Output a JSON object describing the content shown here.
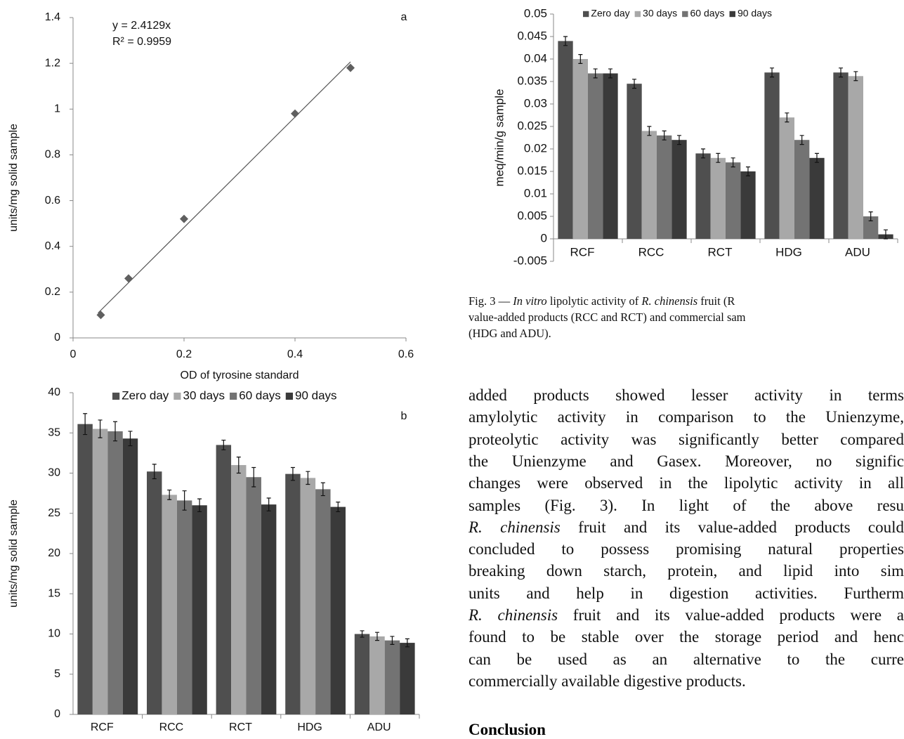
{
  "chart_data": [
    {
      "type": "scatter",
      "label": "a",
      "x": [
        0.05,
        0.1,
        0.2,
        0.4,
        0.5
      ],
      "y": [
        0.1,
        0.26,
        0.52,
        0.98,
        1.18
      ],
      "xlim": [
        0,
        0.6
      ],
      "xticks": [
        0,
        0.2,
        0.4,
        0.6
      ],
      "ylim": [
        0,
        1.4
      ],
      "yticks": [
        0,
        0.2,
        0.4,
        0.6,
        0.8,
        1,
        1.2,
        1.4
      ],
      "xlabel": "OD of tyrosine standard",
      "ylabel": "units/mg solid sample",
      "annotations": [
        "y = 2.4129x",
        "R² = 0.9959"
      ],
      "trendline_slope": 2.4129,
      "color": "#5f5f5f",
      "line_color": "#555555"
    },
    {
      "type": "bar",
      "label": "b",
      "legend": "top",
      "categories": [
        "RCF",
        "RCC",
        "RCT",
        "HDG",
        "ADU"
      ],
      "series": [
        {
          "name": "Zero day",
          "color": "#4f4f4f",
          "values": [
            36.1,
            30.2,
            33.5,
            29.9,
            10.0
          ],
          "errors": [
            1.3,
            0.9,
            0.6,
            0.8,
            0.4
          ]
        },
        {
          "name": "30 days",
          "color": "#a8a8a8",
          "values": [
            35.5,
            27.3,
            31.0,
            29.4,
            9.7
          ],
          "errors": [
            1.1,
            0.6,
            1.0,
            0.8,
            0.5
          ]
        },
        {
          "name": "60 days",
          "color": "#737373",
          "values": [
            35.2,
            26.6,
            29.5,
            28.0,
            9.2
          ],
          "errors": [
            1.2,
            1.2,
            1.2,
            0.8,
            0.5
          ]
        },
        {
          "name": "90 days",
          "color": "#3a3a3a",
          "values": [
            34.3,
            26.0,
            26.1,
            25.8,
            8.9
          ],
          "errors": [
            0.9,
            0.8,
            0.8,
            0.6,
            0.5
          ]
        }
      ],
      "ylim": [
        0,
        40
      ],
      "yticks": [
        0,
        5,
        10,
        15,
        20,
        25,
        30,
        35,
        40
      ],
      "ylabel": "units/mg solid sample"
    },
    {
      "type": "bar",
      "legend": "top",
      "categories": [
        "RCF",
        "RCC",
        "RCT",
        "HDG",
        "ADU"
      ],
      "series": [
        {
          "name": "Zero day",
          "color": "#4f4f4f",
          "values": [
            0.044,
            0.0345,
            0.019,
            0.037,
            0.037
          ],
          "errors": [
            0.001,
            0.001,
            0.001,
            0.001,
            0.001
          ]
        },
        {
          "name": "30 days",
          "color": "#a8a8a8",
          "values": [
            0.04,
            0.024,
            0.018,
            0.027,
            0.0362
          ],
          "errors": [
            0.001,
            0.001,
            0.001,
            0.001,
            0.001
          ]
        },
        {
          "name": "60 days",
          "color": "#737373",
          "values": [
            0.0368,
            0.023,
            0.017,
            0.022,
            0.005
          ],
          "errors": [
            0.001,
            0.001,
            0.001,
            0.001,
            0.001
          ]
        },
        {
          "name": "90 days",
          "color": "#3a3a3a",
          "values": [
            0.0368,
            0.022,
            0.015,
            0.018,
            0.001
          ],
          "errors": [
            0.001,
            0.001,
            0.001,
            0.001,
            0.001
          ]
        }
      ],
      "ylim": [
        -0.005,
        0.05
      ],
      "yticks": [
        -0.005,
        0,
        0.005,
        0.01,
        0.015,
        0.02,
        0.025,
        0.03,
        0.035,
        0.04,
        0.045,
        0.05
      ],
      "ylabel": "meq/min/g sample"
    }
  ],
  "caption": {
    "lines": [
      [
        {
          "text": "Fig. 3 — "
        },
        {
          "text": "In vitro",
          "italic": true
        },
        {
          "text": " lipolytic activity of "
        },
        {
          "text": "R. chinensis",
          "italic": true
        },
        {
          "text": " fruit (R"
        }
      ],
      [
        {
          "text": "value-added products (RCC and RCT) and commercial sam"
        }
      ],
      [
        {
          "text": "(HDG and ADU)."
        }
      ]
    ]
  },
  "body": {
    "lines": [
      [
        {
          "text": "added products showed lesser activity in terms"
        }
      ],
      [
        {
          "text": "amylolytic activity in comparison to the Unienzyme,"
        }
      ],
      [
        {
          "text": "proteolytic activity was significantly better compared"
        }
      ],
      [
        {
          "text": "the Unienzyme and Gasex. Moreover, no signific"
        }
      ],
      [
        {
          "text": "changes were observed in the lipolytic activity in all"
        }
      ],
      [
        {
          "text": "samples (Fig. 3). In light of the above resu"
        }
      ],
      [
        {
          "text": "R. chinensis",
          "italic": true
        },
        {
          "text": " fruit and its value-added products could"
        }
      ],
      [
        {
          "text": "concluded to possess promising natural properties"
        }
      ],
      [
        {
          "text": "breaking down starch, protein, and lipid into sim"
        }
      ],
      [
        {
          "text": "units and help in digestion activities. Furtherm"
        }
      ],
      [
        {
          "text": "R. chinensis",
          "italic": true
        },
        {
          "text": " fruit and its value-added products were a"
        }
      ],
      [
        {
          "text": "found to be stable over the storage period and henc"
        }
      ],
      [
        {
          "text": "can be used as an alternative to the curre"
        }
      ],
      [
        {
          "text": "commercially available digestive products."
        }
      ]
    ]
  },
  "heading": "Conclusion"
}
